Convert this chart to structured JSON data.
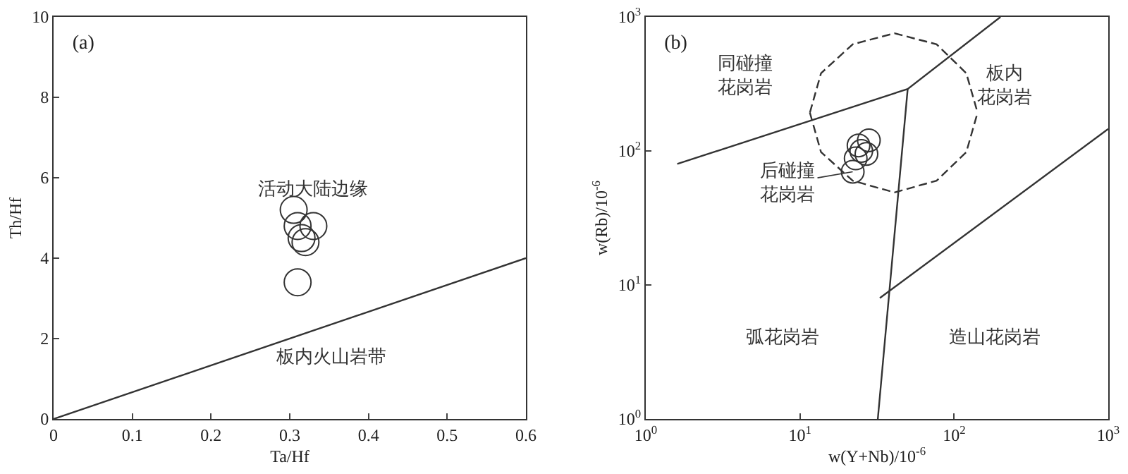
{
  "chart_data": [
    {
      "type": "scatter",
      "title": "(a)",
      "xlabel": "Ta/Hf",
      "ylabel": "Th/Hf",
      "xlim": [
        0,
        0.6
      ],
      "ylim": [
        0,
        10
      ],
      "xticks": [
        0,
        0.1,
        0.2,
        0.3,
        0.4,
        0.5,
        0.6
      ],
      "yticks": [
        0,
        2,
        4,
        6,
        8,
        10
      ],
      "grid": false,
      "series": [
        {
          "type": "line",
          "marker": "none",
          "color": "#333333",
          "x": [
            0,
            0.6
          ],
          "values": [
            0,
            4
          ]
        },
        {
          "marker": "circle",
          "color": "#333333",
          "x": [
            0.305,
            0.31,
            0.33,
            0.315,
            0.32,
            0.31
          ],
          "values": [
            5.2,
            4.8,
            4.8,
            4.5,
            4.4,
            3.4
          ]
        }
      ],
      "annotations": [
        "活动大陆边缘",
        "板内火山岩带"
      ]
    },
    {
      "type": "scatter",
      "title": "(b)",
      "xlabel": "w(Y+Nb)/10$^{-6}$",
      "ylabel": "w(Rb)/10$^{-6}$",
      "log": "xy",
      "xlim": [
        1,
        1000
      ],
      "ylim": [
        1,
        1000
      ],
      "xticks": [
        {
          "value": 1,
          "label": "10$^{0}$"
        },
        {
          "value": 10,
          "label": "10$^{1}$"
        },
        {
          "value": 100,
          "label": "10$^{2}$"
        },
        {
          "value": 1000,
          "label": "10$^{3}$"
        }
      ],
      "yticks": [
        {
          "value": 1,
          "label": "10$^{0}$"
        },
        {
          "value": 10,
          "label": "10$^{1}$"
        },
        {
          "value": 100,
          "label": "10$^{2}$"
        },
        {
          "value": 1000,
          "label": "10$^{3}$"
        }
      ],
      "grid": false,
      "series": [
        {
          "type": "line",
          "marker": "none",
          "color": "#333333",
          "x": [
            1.6,
            50,
            200
          ],
          "values": [
            80,
            290,
            1000
          ]
        },
        {
          "type": "line",
          "marker": "none",
          "color": "#333333",
          "x": [
            50,
            32
          ],
          "values": [
            290,
            1
          ]
        },
        {
          "type": "line",
          "marker": "none",
          "color": "#333333",
          "x": [
            33,
            1000
          ],
          "values": [
            8,
            146
          ]
        },
        {
          "type": "line",
          "marker": "none",
          "color": "#333333",
          "line_style": "dashed",
          "x": [
            11.6,
            13.7,
            22,
            41,
            77,
            120,
            142
          ],
          "values": [
            193,
            380,
            625,
            755,
            625,
            380,
            193
          ]
        },
        {
          "type": "line",
          "marker": "none",
          "color": "#333333",
          "line_style": "dashed",
          "x": [
            11.6,
            13.7,
            22,
            41,
            77,
            120,
            142
          ],
          "values": [
            193,
            98,
            60,
            49,
            60,
            98,
            193
          ]
        },
        {
          "marker": "circle",
          "color": "#333333",
          "x": [
            24,
            27,
            23,
            28,
            22,
            25
          ],
          "values": [
            110,
            95,
            88,
            120,
            70,
            100
          ]
        }
      ],
      "annotations": [
        "同碰撞花岗岩",
        "板内花岗岩",
        {
          "text": "后碰撞花岗岩",
          "x": 22,
          "y": 70
        },
        "弧花岗岩",
        "造山花岗岩"
      ]
    }
  ]
}
